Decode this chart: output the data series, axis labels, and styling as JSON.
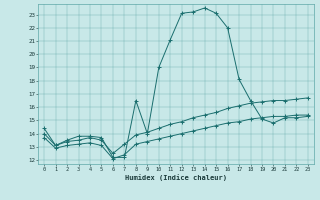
{
  "xlabel": "Humidex (Indice chaleur)",
  "bg_color": "#c8e8e8",
  "grid_color": "#5fa8a8",
  "line_color": "#1a6e6e",
  "xlim": [
    -0.5,
    23.5
  ],
  "ylim": [
    11.7,
    23.8
  ],
  "xticks": [
    0,
    1,
    2,
    3,
    4,
    5,
    6,
    7,
    8,
    9,
    10,
    11,
    12,
    13,
    14,
    15,
    16,
    17,
    18,
    19,
    20,
    21,
    22,
    23
  ],
  "yticks": [
    12,
    13,
    14,
    15,
    16,
    17,
    18,
    19,
    20,
    21,
    22,
    23
  ],
  "line1_x": [
    0,
    1,
    2,
    3,
    4,
    5,
    6,
    7,
    8,
    9,
    10,
    11,
    12,
    13,
    14,
    15,
    16,
    17,
    18,
    19,
    20,
    21,
    22,
    23
  ],
  "line1_y": [
    14.4,
    13.1,
    13.5,
    13.8,
    13.8,
    13.7,
    12.2,
    12.2,
    16.5,
    14.0,
    19.0,
    21.1,
    23.1,
    23.2,
    23.5,
    23.1,
    22.0,
    18.1,
    16.5,
    15.1,
    14.8,
    15.2,
    15.2,
    15.3
  ],
  "line2_x": [
    0,
    1,
    2,
    3,
    4,
    5,
    6,
    7,
    8,
    9,
    10,
    11,
    12,
    13,
    14,
    15,
    16,
    17,
    18,
    19,
    20,
    21,
    22,
    23
  ],
  "line2_y": [
    14.0,
    13.1,
    13.4,
    13.5,
    13.7,
    13.5,
    12.5,
    13.2,
    13.9,
    14.1,
    14.4,
    14.7,
    14.9,
    15.2,
    15.4,
    15.6,
    15.9,
    16.1,
    16.3,
    16.4,
    16.5,
    16.5,
    16.6,
    16.7
  ],
  "line3_x": [
    0,
    1,
    2,
    3,
    4,
    5,
    6,
    7,
    8,
    9,
    10,
    11,
    12,
    13,
    14,
    15,
    16,
    17,
    18,
    19,
    20,
    21,
    22,
    23
  ],
  "line3_y": [
    13.7,
    12.9,
    13.1,
    13.2,
    13.3,
    13.1,
    12.1,
    12.4,
    13.2,
    13.4,
    13.6,
    13.8,
    14.0,
    14.2,
    14.4,
    14.6,
    14.8,
    14.9,
    15.1,
    15.2,
    15.3,
    15.3,
    15.4,
    15.4
  ]
}
